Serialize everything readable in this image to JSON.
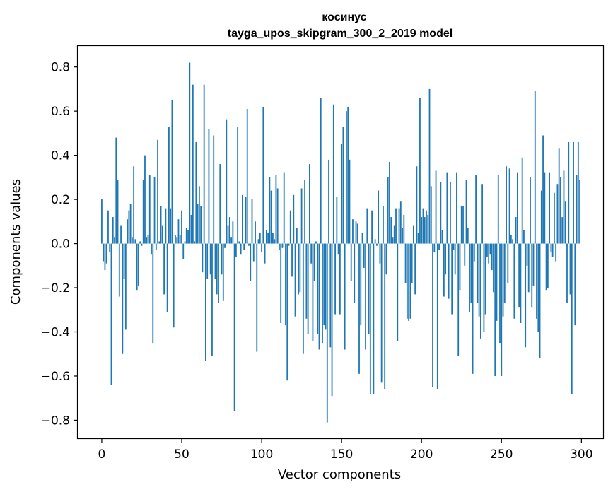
{
  "chart_data": {
    "type": "bar",
    "title_lines": [
      "косинус",
      "tayga_upos_skipgram_300_2_2019 model"
    ],
    "xlabel": "Vector components",
    "ylabel": "Components values",
    "xlim": [
      -15,
      314
    ],
    "ylim": [
      -0.885,
      0.895
    ],
    "xticks": [
      0,
      50,
      100,
      150,
      200,
      250,
      300
    ],
    "yticks": [
      0.8,
      0.6,
      0.4,
      0.2,
      0.0,
      -0.2,
      -0.4,
      -0.6,
      -0.8
    ],
    "ytick_labels": [
      "0.8",
      "0.6",
      "0.4",
      "0.2",
      "0.0",
      "−0.2",
      "−0.4",
      "−0.6",
      "−0.8"
    ],
    "bar_color": "#1f77b4",
    "values": [
      0.2,
      -0.08,
      -0.12,
      -0.09,
      0.15,
      -0.04,
      -0.64,
      0.12,
      0.03,
      0.48,
      0.29,
      -0.24,
      0.08,
      -0.5,
      -0.16,
      -0.39,
      0.11,
      0.15,
      0.18,
      0.03,
      0.35,
      0.02,
      -0.21,
      -0.19,
      0.01,
      -0.01,
      0.29,
      0.4,
      0.03,
      0.04,
      0.31,
      -0.05,
      -0.45,
      0.3,
      -0.03,
      0.47,
      0.01,
      0.17,
      0.08,
      -0.23,
      0.16,
      -0.31,
      0.53,
      0.16,
      0.65,
      -0.38,
      0.04,
      0.03,
      0.11,
      0.04,
      0.15,
      -0.07,
      0.01,
      0.07,
      0.06,
      0.82,
      0.13,
      0.72,
      0.01,
      0.46,
      0.18,
      0.26,
      0.17,
      -0.13,
      0.72,
      -0.53,
      -0.16,
      0.52,
      -0.14,
      -0.51,
      0.49,
      -0.16,
      -0.23,
      -0.27,
      0.36,
      -0.14,
      -0.26,
      -0.02,
      0.56,
      0.08,
      0.12,
      0.03,
      0.1,
      -0.76,
      -0.06,
      0.53,
      0.01,
      -0.05,
      0.22,
      -0.03,
      0.21,
      0.61,
      -0.01,
      -0.17,
      0.2,
      -0.08,
      0.1,
      -0.49,
      0.02,
      0.05,
      -0.04,
      0.62,
      -0.09,
      0.06,
      0.05,
      0.3,
      0.24,
      0.05,
      0.02,
      0.31,
      0.25,
      -0.03,
      -0.36,
      -0.02,
      0.32,
      -0.37,
      -0.62,
      -0.01,
      0.15,
      -0.15,
      0.22,
      -0.33,
      0.07,
      -0.23,
      -0.22,
      0.25,
      -0.5,
      0.29,
      -0.34,
      -0.41,
      0.36,
      -0.09,
      -0.44,
      -0.17,
      0.01,
      -0.41,
      -0.48,
      0.66,
      -0.45,
      -0.37,
      -0.39,
      -0.81,
      0.38,
      -0.47,
      -0.69,
      0.63,
      -0.32,
      0.21,
      -0.05,
      -0.32,
      0.45,
      0.53,
      -0.48,
      0.6,
      0.62,
      0.38,
      -0.17,
      0.11,
      -0.27,
      0.1,
      0.09,
      -0.59,
      -0.37,
      0.05,
      -0.11,
      -0.48,
      0.16,
      -0.41,
      -0.68,
      0.15,
      -0.68,
      0.02,
      -0.01,
      0.24,
      -0.09,
      -0.63,
      0.17,
      -0.66,
      -0.14,
      0.3,
      0.37,
      0.12,
      0.03,
      0.08,
      0.16,
      -0.44,
      0.16,
      0.19,
      0.07,
      0.13,
      -0.18,
      -0.34,
      -0.35,
      -0.34,
      -0.18,
      0.08,
      -0.23,
      0.35,
      0.05,
      0.66,
      0.12,
      0.16,
      0.12,
      0.15,
      0.13,
      0.7,
      0.26,
      -0.65,
      -0.04,
      0.33,
      -0.66,
      -0.03,
      0.28,
      0.06,
      -0.24,
      -0.14,
      0.32,
      -0.25,
      0.28,
      -0.32,
      -0.03,
      -0.14,
      0.32,
      -0.51,
      -0.21,
      0.17,
      0.17,
      -0.1,
      0.29,
      0.07,
      -0.31,
      -0.27,
      -0.59,
      -0.08,
      0.31,
      -0.27,
      -0.33,
      -0.43,
      0.27,
      -0.4,
      -0.32,
      -0.06,
      -0.09,
      -0.05,
      -0.12,
      -0.22,
      -0.6,
      -0.35,
      0.31,
      -0.45,
      -0.6,
      -0.33,
      -0.27,
      0.35,
      -0.18,
      0.34,
      0.04,
      0.02,
      -0.34,
      0.12,
      0.32,
      -0.29,
      -0.36,
      0.39,
      0.06,
      -0.47,
      -0.1,
      -0.22,
      0.3,
      -0.29,
      -0.19,
      0.69,
      -0.34,
      -0.4,
      -0.52,
      0.24,
      0.49,
      0.32,
      -0.21,
      -0.2,
      0.32,
      -0.04,
      -0.06,
      0.23,
      -0.08,
      0.27,
      0.43,
      0.3,
      0.12,
      0.33,
      0.19,
      -0.27,
      0.46,
      -0.23,
      -0.68,
      0.46,
      -0.37,
      0.31,
      0.46,
      0.29
    ]
  }
}
